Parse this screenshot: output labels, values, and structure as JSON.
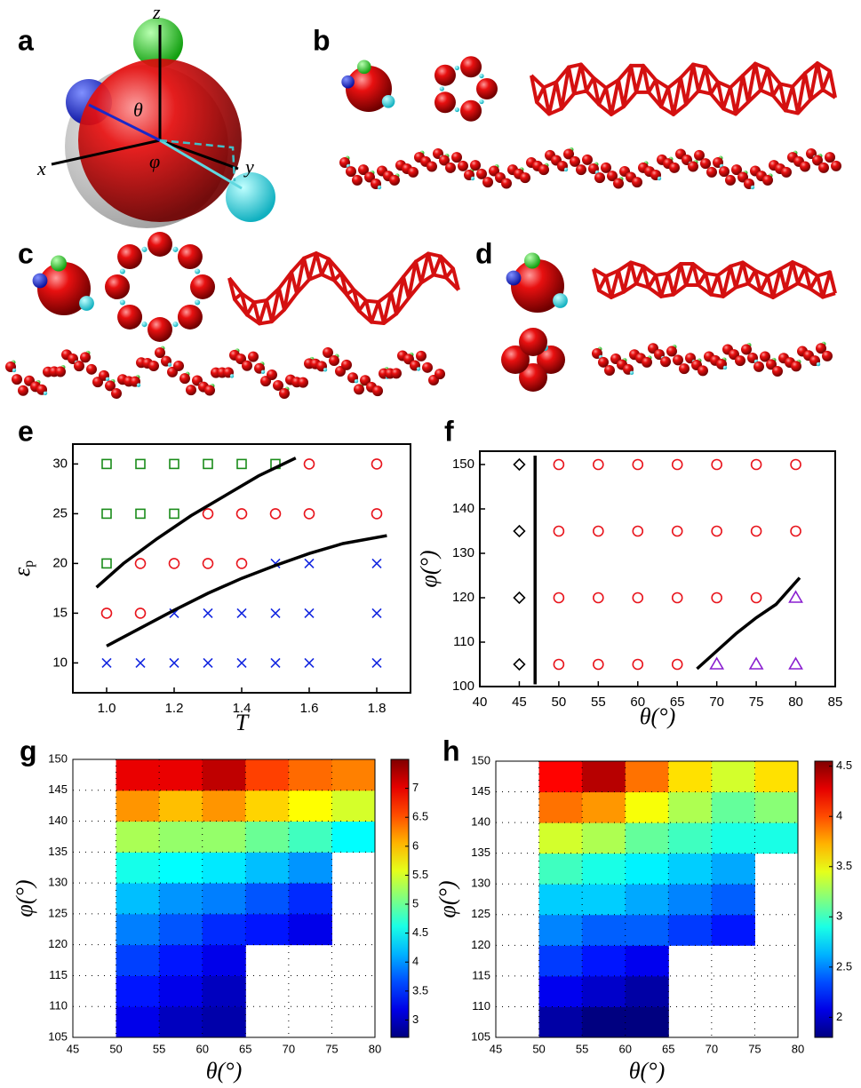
{
  "panel_labels": [
    "a",
    "b",
    "c",
    "d",
    "e",
    "f",
    "g",
    "h"
  ],
  "diagram_a": {
    "axis_labels": [
      "z",
      "x",
      "y",
      "θ",
      "φ"
    ]
  },
  "chart_data": [
    {
      "type": "scatter",
      "xlabel": "T",
      "ylabel": "ε",
      "ylabel_sub": "p",
      "xlim": [
        0.9,
        1.9
      ],
      "xticks": [
        {
          "value": 1,
          "label": "1.0"
        },
        1.2,
        1.4,
        1.6,
        1.8
      ],
      "ylim": [
        7,
        32
      ],
      "yticks": [
        10,
        15,
        20,
        25,
        30
      ],
      "series": [
        {
          "marker": "square",
          "color": "#1a8c1a",
          "x": [
            1.0,
            1.1,
            1.2,
            1.3,
            1.4,
            1.5,
            1.0,
            1.1,
            1.2,
            1.0
          ],
          "y": [
            30,
            30,
            30,
            30,
            30,
            30,
            25,
            25,
            25,
            20
          ]
        },
        {
          "marker": "circle",
          "color": "#e8141c",
          "x": [
            1.6,
            1.8,
            1.3,
            1.4,
            1.5,
            1.6,
            1.8,
            1.1,
            1.2,
            1.3,
            1.4,
            1.0,
            1.1
          ],
          "y": [
            30,
            30,
            25,
            25,
            25,
            25,
            25,
            20,
            20,
            20,
            20,
            15,
            15
          ]
        },
        {
          "marker": "cross",
          "color": "#1428e0",
          "x": [
            1.5,
            1.6,
            1.8,
            1.2,
            1.3,
            1.4,
            1.5,
            1.6,
            1.8,
            1.0,
            1.1,
            1.2,
            1.3,
            1.4,
            1.5,
            1.6,
            1.8
          ],
          "y": [
            20,
            20,
            20,
            15,
            15,
            15,
            15,
            15,
            15,
            10,
            10,
            10,
            10,
            10,
            10,
            10,
            10
          ]
        },
        {
          "marker": "line",
          "color": "#000000",
          "x": [
            0.97,
            1.05,
            1.15,
            1.25,
            1.35,
            1.45,
            1.56
          ],
          "y": [
            17.6,
            20,
            22.5,
            24.8,
            26.8,
            28.8,
            30.6
          ]
        },
        {
          "marker": "line",
          "color": "#000000",
          "x": [
            1.0,
            1.1,
            1.2,
            1.3,
            1.4,
            1.5,
            1.6,
            1.7,
            1.83
          ],
          "y": [
            11.7,
            13.5,
            15.3,
            17,
            18.5,
            19.8,
            21,
            22,
            22.8
          ]
        }
      ]
    },
    {
      "type": "scatter",
      "xlabel": "θ(°)",
      "ylabel": "φ(°)",
      "xlim": [
        40,
        85
      ],
      "xticks": [
        40,
        45,
        50,
        55,
        60,
        65,
        70,
        75,
        80,
        85
      ],
      "ylim": [
        100,
        153
      ],
      "yticks": [
        100,
        110,
        120,
        130,
        140,
        150
      ],
      "series": [
        {
          "marker": "diamond",
          "color": "#000000",
          "x": [
            45,
            45,
            45,
            45
          ],
          "y": [
            150,
            135,
            120,
            105
          ]
        },
        {
          "marker": "circle",
          "color": "#e8141c",
          "x": [
            50,
            55,
            60,
            65,
            70,
            75,
            80,
            50,
            55,
            60,
            65,
            70,
            75,
            80,
            50,
            55,
            60,
            65,
            70,
            75,
            50,
            55,
            60,
            65
          ],
          "y": [
            150,
            150,
            150,
            150,
            150,
            150,
            150,
            135,
            135,
            135,
            135,
            135,
            135,
            135,
            120,
            120,
            120,
            120,
            120,
            120,
            105,
            105,
            105,
            105
          ]
        },
        {
          "marker": "triangle",
          "color": "#8a1fd0",
          "x": [
            80,
            70,
            75,
            80
          ],
          "y": [
            120,
            105,
            105,
            105
          ]
        },
        {
          "marker": "line",
          "color": "#000000",
          "x": [
            47,
            47
          ],
          "y": [
            100.5,
            152
          ]
        },
        {
          "marker": "line",
          "color": "#000000",
          "x": [
            67.5,
            70,
            72.5,
            75,
            77.5,
            80.5
          ],
          "y": [
            104,
            108,
            112,
            115.5,
            118.5,
            124.5
          ]
        }
      ]
    },
    {
      "type": "heatmap",
      "xlabel": "θ(°)",
      "ylabel": "φ(°)",
      "xlim": [
        45,
        80
      ],
      "xticks": [
        45,
        50,
        55,
        60,
        65,
        70,
        75,
        80
      ],
      "ylim": [
        105,
        150
      ],
      "yticks": [
        105,
        110,
        115,
        120,
        125,
        130,
        135,
        140,
        145,
        150
      ],
      "grid": "dotted",
      "x_edges": [
        50,
        55,
        60,
        65,
        70,
        75,
        80
      ],
      "y_edges": [
        105,
        110,
        115,
        120,
        125,
        130,
        135,
        140,
        145,
        150
      ],
      "z": [
        [
          3.2,
          3.0,
          2.9,
          null,
          null,
          null
        ],
        [
          3.4,
          3.2,
          3.0,
          null,
          null,
          null
        ],
        [
          3.6,
          3.4,
          3.2,
          null,
          null,
          null
        ],
        [
          3.9,
          3.7,
          3.5,
          3.4,
          3.2,
          null
        ],
        [
          4.2,
          4.0,
          3.9,
          3.7,
          3.5,
          null
        ],
        [
          4.6,
          4.5,
          4.4,
          4.2,
          4.0,
          null
        ],
        [
          5.3,
          5.2,
          5.2,
          5.0,
          4.8,
          4.5
        ],
        [
          6.2,
          6.0,
          6.2,
          5.9,
          5.7,
          5.5
        ],
        [
          7.0,
          7.0,
          7.2,
          6.6,
          6.4,
          6.3
        ]
      ],
      "clim": [
        2.7,
        7.5
      ],
      "cticks": [
        3,
        3.5,
        4,
        4.5,
        5,
        5.5,
        6,
        6.5,
        7
      ],
      "colormap": "jet"
    },
    {
      "type": "heatmap",
      "xlabel": "θ(°)",
      "ylabel": "φ(°)",
      "xlim": [
        45,
        80
      ],
      "xticks": [
        45,
        50,
        55,
        60,
        65,
        70,
        75,
        80
      ],
      "ylim": [
        105,
        150
      ],
      "yticks": [
        105,
        110,
        115,
        120,
        125,
        130,
        135,
        140,
        145,
        150
      ],
      "grid": "dotted",
      "x_edges": [
        50,
        55,
        60,
        65,
        70,
        75,
        80
      ],
      "y_edges": [
        105,
        110,
        115,
        120,
        125,
        130,
        135,
        140,
        145,
        150
      ],
      "z": [
        [
          1.9,
          1.8,
          1.8,
          null,
          null,
          null
        ],
        [
          2.1,
          2.0,
          1.9,
          null,
          null,
          null
        ],
        [
          2.3,
          2.2,
          2.1,
          null,
          null,
          null
        ],
        [
          2.5,
          2.4,
          2.4,
          2.3,
          2.2,
          null
        ],
        [
          2.7,
          2.7,
          2.6,
          2.5,
          2.4,
          null
        ],
        [
          3.0,
          2.9,
          2.8,
          2.7,
          2.6,
          null
        ],
        [
          3.4,
          3.3,
          3.1,
          3.0,
          2.9,
          2.9
        ],
        [
          3.9,
          3.8,
          3.5,
          3.3,
          3.1,
          3.2
        ],
        [
          4.2,
          4.4,
          3.9,
          3.6,
          3.4,
          3.6
        ]
      ],
      "clim": [
        1.8,
        4.55
      ],
      "cticks": [
        2,
        2.5,
        3,
        3.5,
        4,
        4.5
      ],
      "colormap": "jet"
    }
  ]
}
